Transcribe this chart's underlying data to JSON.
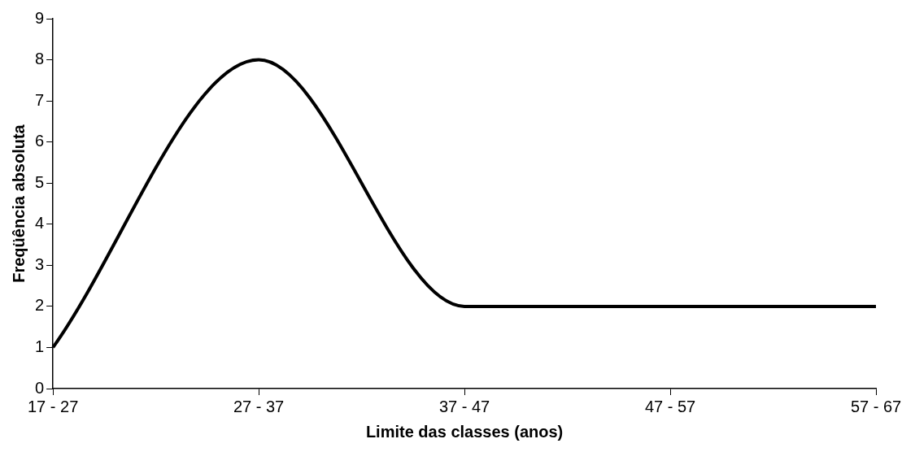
{
  "chart_data": {
    "type": "line",
    "xlabel": "Limite das classes (anos)",
    "ylabel": "Freqüência absoluta",
    "categories": [
      "17 - 27",
      "27 - 37",
      "37 - 47",
      "47 - 57",
      "57 - 67"
    ],
    "series": [
      {
        "color": "#000000",
        "values": [
          1,
          8,
          2,
          2,
          2
        ]
      }
    ],
    "ylim": [
      0,
      9
    ],
    "yticks": [
      0,
      1,
      2,
      3,
      4,
      5,
      6,
      7,
      8,
      9
    ],
    "grid": false,
    "legend": false,
    "marker": "none",
    "line_style": "solid"
  }
}
